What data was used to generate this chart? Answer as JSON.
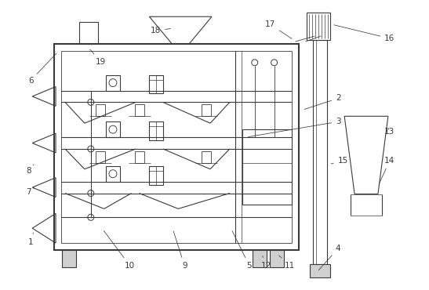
{
  "fig_width": 5.47,
  "fig_height": 3.7,
  "dpi": 100,
  "bg_color": "#ffffff",
  "lc": "#3a3a3a",
  "lw": 0.8,
  "lw_thick": 1.5,
  "fs": 7.5
}
